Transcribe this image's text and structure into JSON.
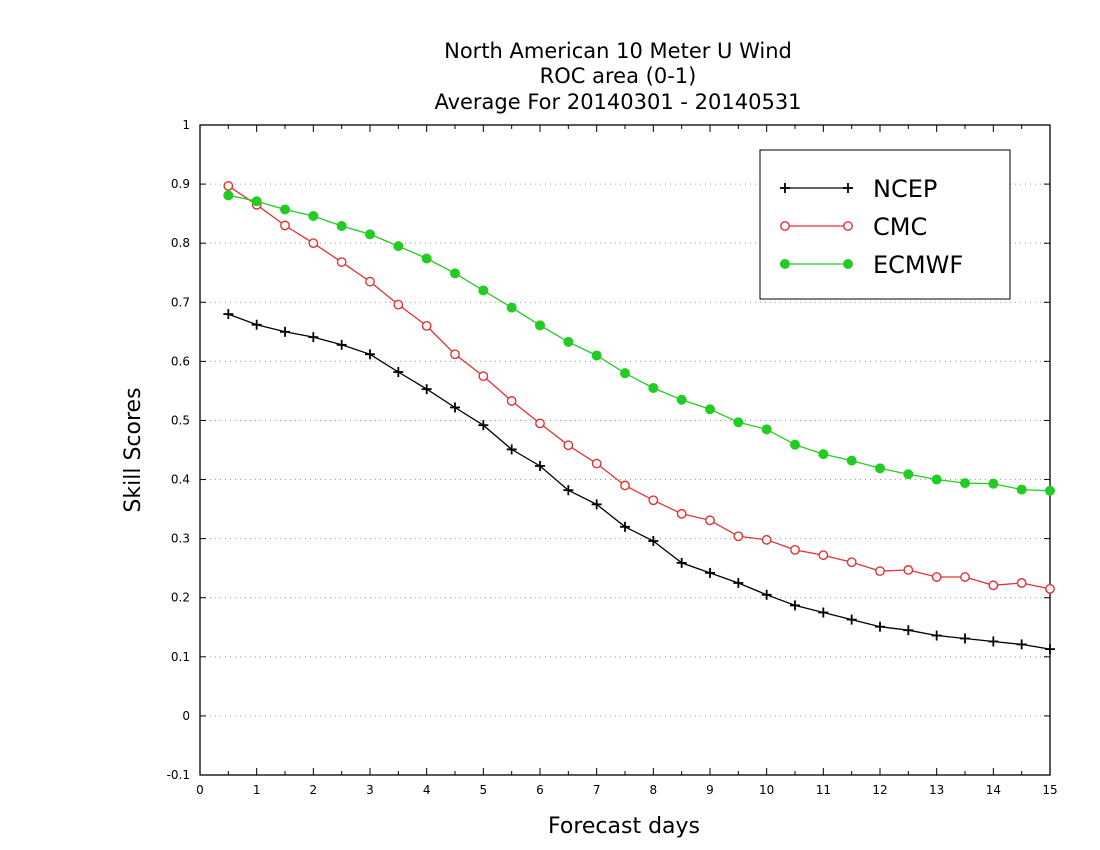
{
  "chart_data": {
    "type": "line",
    "title_lines": [
      "North American 10 Meter U Wind",
      "ROC area (0-1)",
      "Average For 20140301 - 20140531"
    ],
    "xlabel": "Forecast days",
    "ylabel": "Skill Scores",
    "xlim": [
      0,
      15
    ],
    "ylim": [
      -0.1,
      1
    ],
    "xticks": [
      "0",
      "1",
      "2",
      "3",
      "4",
      "5",
      "6",
      "7",
      "8",
      "9",
      "10",
      "11",
      "12",
      "13",
      "14",
      "15"
    ],
    "yticks": [
      "-0.1",
      "0",
      "0.1",
      "0.2",
      "0.3",
      "0.4",
      "0.5",
      "0.6",
      "0.7",
      "0.8",
      "0.9",
      "1"
    ],
    "grid": true,
    "legend_position": "top-right",
    "x": [
      0.5,
      1,
      1.5,
      2,
      2.5,
      3,
      3.5,
      4,
      4.5,
      5,
      5.5,
      6,
      6.5,
      7,
      7.5,
      8,
      8.5,
      9,
      9.5,
      10,
      10.5,
      11,
      11.5,
      12,
      12.5,
      13,
      13.5,
      14,
      14.5,
      15
    ],
    "series": [
      {
        "name": "NCEP",
        "color": "#000000",
        "marker": "plus",
        "values": [
          0.68,
          0.662,
          0.65,
          0.641,
          0.628,
          0.612,
          0.582,
          0.553,
          0.522,
          0.492,
          0.451,
          0.423,
          0.382,
          0.358,
          0.32,
          0.296,
          0.259,
          0.242,
          0.225,
          0.205,
          0.187,
          0.175,
          0.163,
          0.151,
          0.145,
          0.136,
          0.131,
          0.126,
          0.121,
          0.113
        ]
      },
      {
        "name": "CMC",
        "color": "#e03232",
        "marker": "open-circle",
        "values": [
          0.897,
          0.865,
          0.83,
          0.8,
          0.768,
          0.735,
          0.696,
          0.66,
          0.612,
          0.575,
          0.533,
          0.495,
          0.458,
          0.427,
          0.39,
          0.365,
          0.342,
          0.331,
          0.304,
          0.298,
          0.281,
          0.272,
          0.26,
          0.245,
          0.247,
          0.235,
          0.235,
          0.221,
          0.225,
          0.215
        ]
      },
      {
        "name": "ECMWF",
        "color": "#22cc22",
        "marker": "filled-circle",
        "values": [
          0.881,
          0.871,
          0.857,
          0.846,
          0.829,
          0.815,
          0.795,
          0.774,
          0.749,
          0.72,
          0.691,
          0.661,
          0.633,
          0.61,
          0.58,
          0.555,
          0.535,
          0.519,
          0.497,
          0.485,
          0.459,
          0.443,
          0.432,
          0.419,
          0.409,
          0.4,
          0.394,
          0.393,
          0.383,
          0.381
        ]
      }
    ]
  }
}
